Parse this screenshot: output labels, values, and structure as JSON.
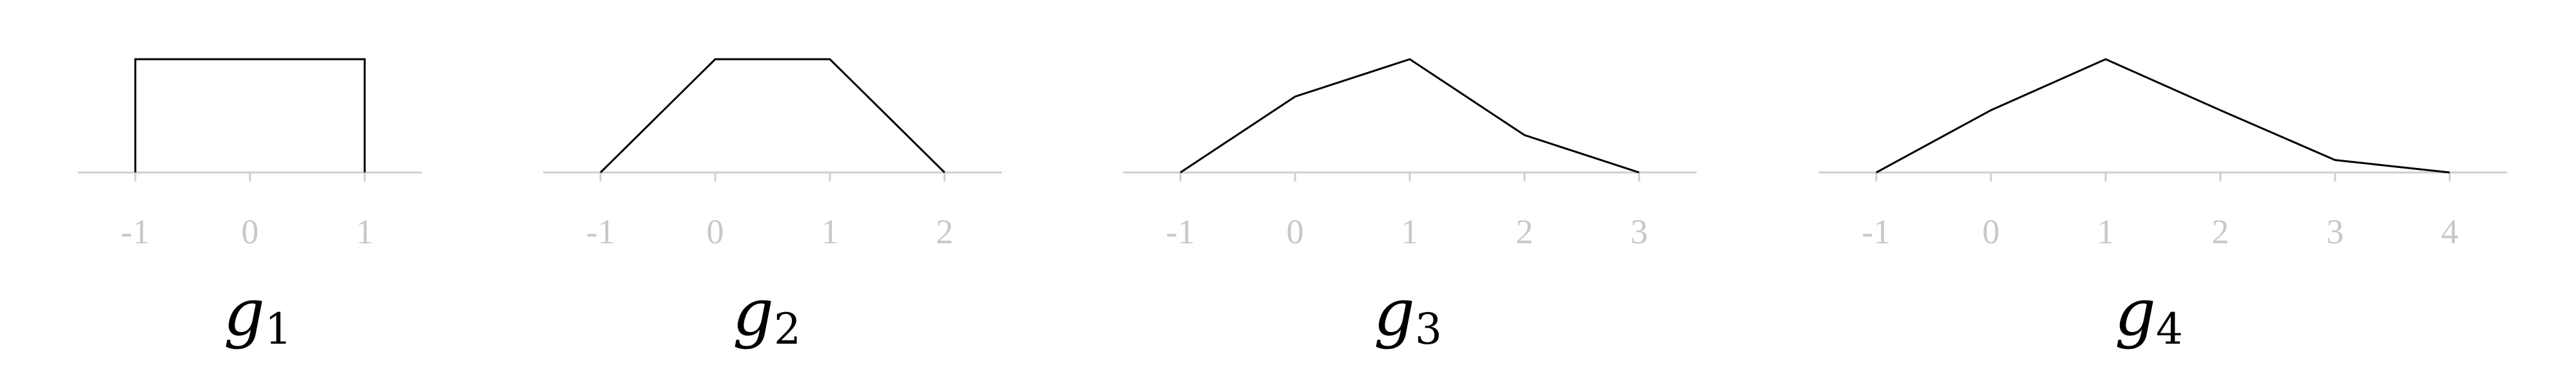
{
  "panels": [
    {
      "caption": {
        "letter": "g",
        "sub": "1"
      },
      "ticks": [
        "-1",
        "0",
        "1"
      ],
      "chart_data": {
        "type": "line",
        "x": [
          -1,
          -1,
          1,
          1
        ],
        "y": [
          0,
          1,
          1,
          0
        ],
        "xlim": [
          -1.5,
          1.5
        ],
        "ylim": [
          0,
          1
        ]
      }
    },
    {
      "caption": {
        "letter": "g",
        "sub": "2"
      },
      "ticks": [
        "-1",
        "0",
        "1",
        "2"
      ],
      "chart_data": {
        "type": "line",
        "x": [
          -1,
          0,
          1,
          2
        ],
        "y": [
          0,
          1,
          1,
          0
        ],
        "xlim": [
          -1.5,
          2.5
        ],
        "ylim": [
          0,
          1
        ]
      }
    },
    {
      "caption": {
        "letter": "g",
        "sub": "3"
      },
      "ticks": [
        "-1",
        "0",
        "1",
        "2",
        "3"
      ],
      "chart_data": {
        "type": "line",
        "x": [
          -1,
          0,
          1,
          2,
          3
        ],
        "y": [
          0,
          0.67,
          1,
          0.33,
          0
        ],
        "xlim": [
          -1.5,
          3.5
        ],
        "ylim": [
          0,
          1
        ]
      }
    },
    {
      "caption": {
        "letter": "g",
        "sub": "4"
      },
      "ticks": [
        "-1",
        "0",
        "1",
        "2",
        "3",
        "4"
      ],
      "chart_data": {
        "type": "line",
        "x": [
          -1,
          0,
          1,
          2,
          3,
          4
        ],
        "y": [
          0,
          0.55,
          1,
          0.55,
          0.11,
          0
        ],
        "xlim": [
          -1.5,
          4.5
        ],
        "ylim": [
          0,
          1
        ]
      }
    }
  ]
}
